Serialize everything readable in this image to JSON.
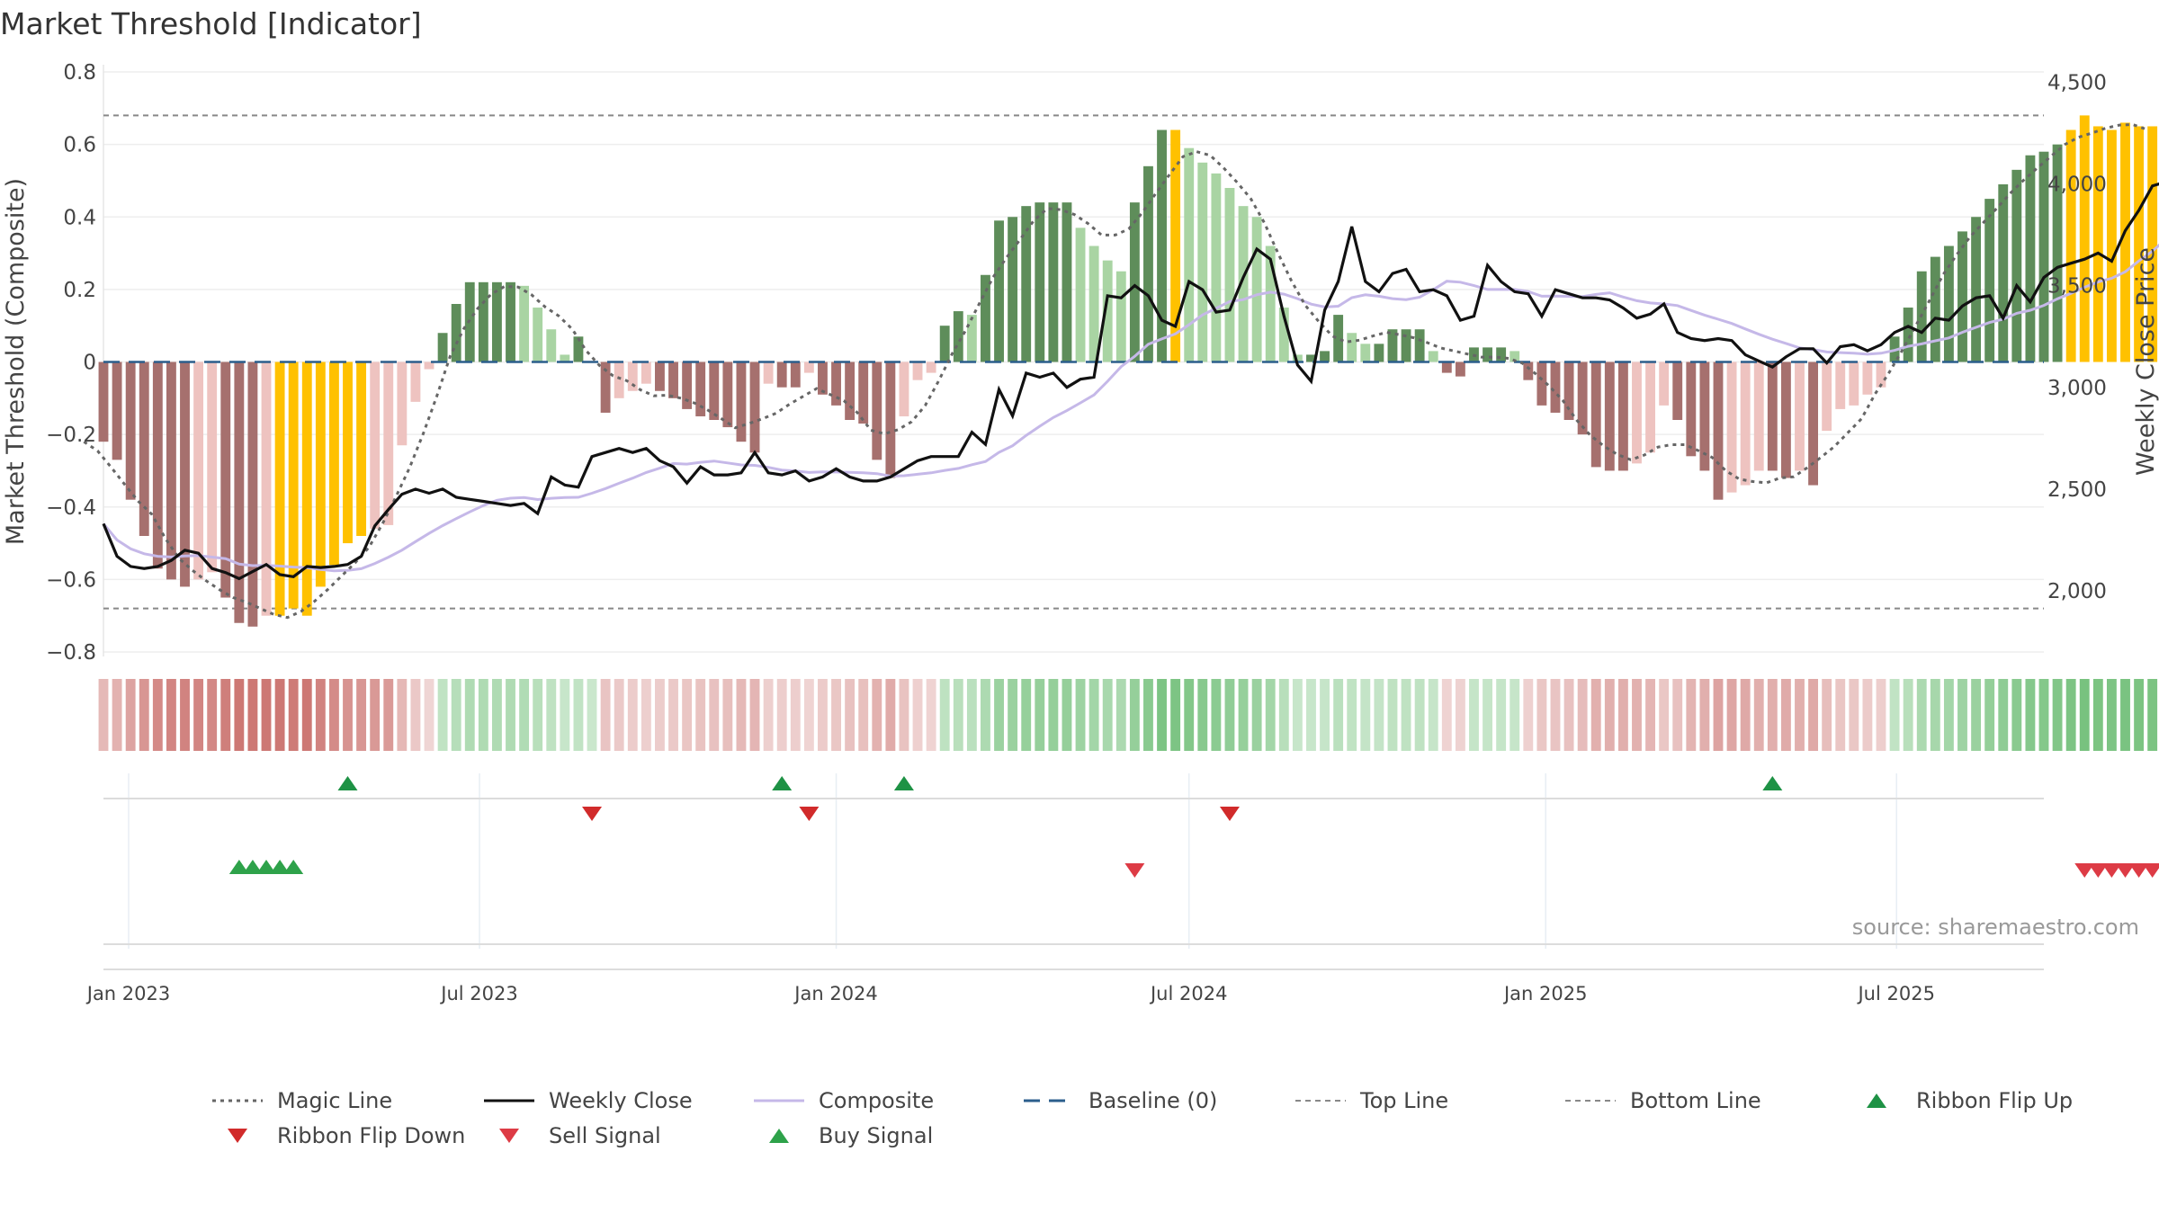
{
  "chart_data": {
    "type": "bar",
    "title": "Market Threshold [Indicator]",
    "source": "source: sharemaestro.com",
    "y_left": {
      "label": "Market Threshold (Composite)",
      "range": [
        -0.8,
        0.8
      ],
      "ticks": [
        "−0.8",
        "−0.6",
        "−0.4",
        "−0.2",
        "0",
        "0.2",
        "0.4",
        "0.6",
        "0.8"
      ]
    },
    "y_right": {
      "label": "Weekly Close Price",
      "range": [
        1700,
        4550
      ],
      "ticks": [
        "2,000",
        "2,500",
        "3,000",
        "3,500",
        "4,000",
        "4,500"
      ]
    },
    "x_range": [
      "2022-12-19",
      "2025-09-15"
    ],
    "x_ticks": [
      {
        "label": "Jan 2023",
        "date": "2023-01-01"
      },
      {
        "label": "Jul 2023",
        "date": "2023-07-01"
      },
      {
        "label": "Jan 2024",
        "date": "2024-01-01"
      },
      {
        "label": "Jul 2024",
        "date": "2024-07-01"
      },
      {
        "label": "Jan 2025",
        "date": "2025-01-01"
      },
      {
        "label": "Jul 2025",
        "date": "2025-07-01"
      }
    ],
    "start_week": "2022-12-19",
    "week_step_days": 7,
    "composite_bars": [
      -0.22,
      -0.27,
      -0.38,
      -0.48,
      -0.57,
      -0.6,
      -0.62,
      -0.6,
      -0.58,
      -0.65,
      -0.72,
      -0.73,
      -0.7,
      -0.7,
      -0.68,
      -0.7,
      -0.62,
      -0.56,
      -0.5,
      -0.48,
      -0.46,
      -0.45,
      -0.23,
      -0.11,
      -0.02,
      0.08,
      0.16,
      0.22,
      0.22,
      0.22,
      0.22,
      0.21,
      0.15,
      0.09,
      0.02,
      0.07,
      0.0,
      -0.14,
      -0.1,
      -0.08,
      -0.06,
      -0.08,
      -0.1,
      -0.13,
      -0.15,
      -0.16,
      -0.18,
      -0.22,
      -0.25,
      -0.06,
      -0.07,
      -0.07,
      -0.03,
      -0.09,
      -0.12,
      -0.16,
      -0.17,
      -0.27,
      -0.32,
      -0.15,
      -0.05,
      -0.03,
      0.1,
      0.14,
      0.13,
      0.24,
      0.39,
      0.4,
      0.43,
      0.44,
      0.44,
      0.44,
      0.37,
      0.32,
      0.28,
      0.25,
      0.44,
      0.54,
      0.64,
      0.64,
      0.59,
      0.55,
      0.52,
      0.48,
      0.43,
      0.4,
      0.32,
      0.15,
      0.02,
      0.02,
      0.03,
      0.13,
      0.08,
      0.05,
      0.05,
      0.09,
      0.09,
      0.09,
      0.03,
      -0.03,
      -0.04,
      0.04,
      0.04,
      0.04,
      0.03,
      -0.05,
      -0.12,
      -0.14,
      -0.16,
      -0.2,
      -0.29,
      -0.3,
      -0.3,
      -0.28,
      -0.25,
      -0.12,
      -0.16,
      -0.26,
      -0.3,
      -0.38,
      -0.36,
      -0.34,
      -0.3,
      -0.3,
      -0.32,
      -0.3,
      -0.34,
      -0.19,
      -0.13,
      -0.12,
      -0.09,
      -0.07,
      0.07,
      0.15,
      0.25,
      0.29,
      0.32,
      0.36,
      0.4,
      0.45,
      0.49,
      0.53,
      0.57,
      0.58,
      0.6,
      0.64,
      0.68,
      0.65,
      0.64,
      0.66,
      0.65,
      0.65,
      0.6
    ],
    "bar_colors": {
      "dark_red": "#a6706e",
      "light_red": "#eec3c0",
      "dark_green": "#5e8d5a",
      "light_green": "#a9d4a3",
      "gold": "#ffc100"
    },
    "gold_bar_weeks": [
      [
        13,
        19
      ],
      [
        79,
        79
      ],
      [
        145,
        152
      ]
    ],
    "weekly_close": [
      2330,
      2170,
      2120,
      2110,
      2120,
      2150,
      2200,
      2185,
      2110,
      2090,
      2060,
      2095,
      2130,
      2080,
      2070,
      2120,
      2115,
      2120,
      2130,
      2170,
      2320,
      2400,
      2475,
      2500,
      2480,
      2500,
      2460,
      2450,
      2440,
      2430,
      2420,
      2430,
      2380,
      2560,
      2520,
      2510,
      2660,
      2680,
      2700,
      2680,
      2700,
      2640,
      2610,
      2530,
      2610,
      2570,
      2570,
      2580,
      2680,
      2580,
      2570,
      2590,
      2540,
      2560,
      2600,
      2560,
      2540,
      2540,
      2560,
      2600,
      2640,
      2660,
      2660,
      2660,
      2780,
      2720,
      2990,
      2860,
      3070,
      3050,
      3070,
      3000,
      3040,
      3050,
      3450,
      3440,
      3500,
      3450,
      3330,
      3300,
      3520,
      3480,
      3370,
      3380,
      3540,
      3680,
      3630,
      3350,
      3110,
      3030,
      3380,
      3520,
      3790,
      3520,
      3470,
      3560,
      3580,
      3470,
      3480,
      3450,
      3330,
      3350,
      3600,
      3520,
      3470,
      3460,
      3350,
      3480,
      3460,
      3440,
      3440,
      3430,
      3390,
      3340,
      3360,
      3410,
      3270,
      3240,
      3230,
      3240,
      3230,
      3160,
      3130,
      3100,
      3150,
      3190,
      3190,
      3120,
      3200,
      3210,
      3180,
      3210,
      3270,
      3300,
      3270,
      3340,
      3330,
      3400,
      3440,
      3450,
      3340,
      3500,
      3420,
      3540,
      3590,
      3610,
      3630,
      3660,
      3620,
      3770,
      3870,
      3990,
      4010,
      3880,
      4060,
      4030,
      4090,
      4220
    ]
  },
  "legend": [
    {
      "id": "magic",
      "label": "Magic Line",
      "type": "line",
      "color": "#666666",
      "dash": "dotted"
    },
    {
      "id": "close",
      "label": "Weekly Close",
      "type": "line",
      "color": "#111111",
      "dash": "solid"
    },
    {
      "id": "composite",
      "label": "Composite",
      "type": "line",
      "color": "#c5b8e8",
      "dash": "solid"
    },
    {
      "id": "baseline",
      "label": "Baseline (0)",
      "type": "line",
      "color": "#2b5e8c",
      "dash": "dashed"
    },
    {
      "id": "top",
      "label": "Top Line",
      "type": "line",
      "color": "#888888",
      "dash": "fine"
    },
    {
      "id": "bottom",
      "label": "Bottom Line",
      "type": "line",
      "color": "#888888",
      "dash": "fine"
    },
    {
      "id": "ribbon_up",
      "label": "Ribbon Flip Up",
      "type": "tri-up",
      "color": "#1e9245"
    },
    {
      "id": "ribbon_down",
      "label": "Ribbon Flip Down",
      "type": "tri-down",
      "color": "#d12b2b"
    },
    {
      "id": "sell",
      "label": "Sell Signal",
      "type": "tri-down",
      "color": "#dd3b45"
    },
    {
      "id": "buy",
      "label": "Buy Signal",
      "type": "tri-up",
      "color": "#2ea24a"
    }
  ]
}
